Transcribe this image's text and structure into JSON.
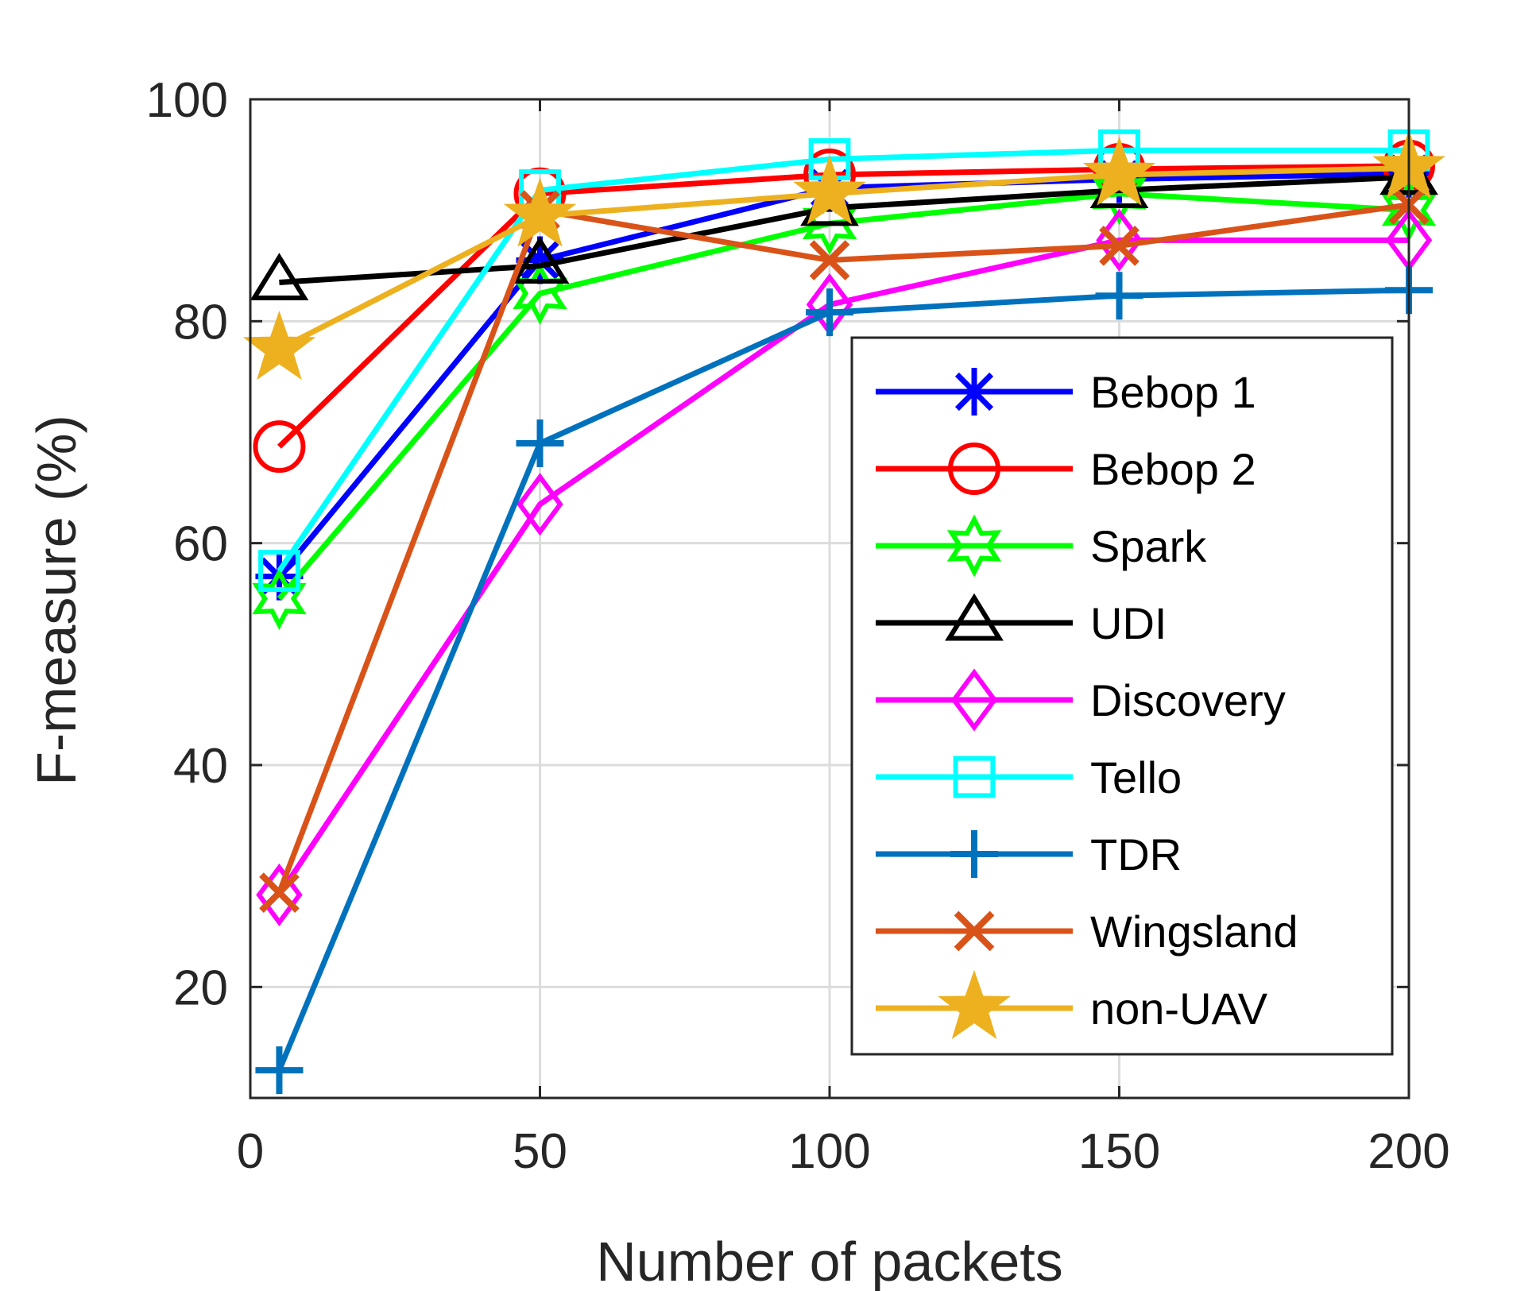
{
  "chart_data": {
    "type": "line",
    "title": "",
    "xlabel": "Number of packets",
    "ylabel": "F-measure (%)",
    "xlim": [
      0,
      200
    ],
    "ylim": [
      10,
      100
    ],
    "xticks": [
      0,
      50,
      100,
      150,
      200
    ],
    "yticks": [
      20,
      40,
      60,
      80,
      100
    ],
    "grid": true,
    "legend_position": "bottom-right",
    "x": [
      5,
      50,
      100,
      150,
      200
    ],
    "series": [
      {
        "name": "Bebop 1",
        "color": "#0000ff",
        "marker": "asterisk",
        "values": [
          57.0,
          85.5,
          92.0,
          92.8,
          93.3
        ]
      },
      {
        "name": "Bebop 2",
        "color": "#ff0000",
        "marker": "circle",
        "values": [
          68.7,
          91.5,
          93.2,
          93.7,
          94.0
        ]
      },
      {
        "name": "Spark",
        "color": "#00ff00",
        "marker": "hexagram",
        "values": [
          55.0,
          82.5,
          88.8,
          91.5,
          90.0
        ]
      },
      {
        "name": "UDI",
        "color": "#000000",
        "marker": "triangle",
        "values": [
          83.5,
          85.0,
          90.2,
          91.8,
          93.0
        ]
      },
      {
        "name": "Discovery",
        "color": "#ff00ff",
        "marker": "diamond",
        "values": [
          28.3,
          63.5,
          81.5,
          87.3,
          87.3
        ]
      },
      {
        "name": "Tello",
        "color": "#00ffff",
        "marker": "square",
        "values": [
          57.5,
          91.8,
          94.6,
          95.4,
          95.4
        ]
      },
      {
        "name": "TDR",
        "color": "#0072bd",
        "marker": "plus",
        "values": [
          12.5,
          69.0,
          80.8,
          82.3,
          82.8
        ]
      },
      {
        "name": "Wingsland",
        "color": "#d95319",
        "marker": "x",
        "values": [
          28.5,
          90.0,
          85.5,
          86.8,
          90.5
        ]
      },
      {
        "name": "non-UAV",
        "color": "#edb120",
        "marker": "pentagram",
        "values": [
          77.5,
          89.5,
          91.5,
          93.2,
          93.8
        ]
      }
    ]
  }
}
